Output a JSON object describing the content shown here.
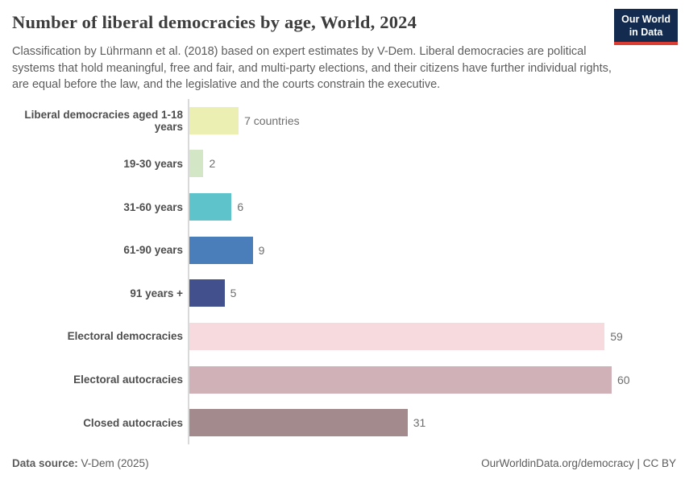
{
  "header": {
    "title": "Number of liberal democracies by age, World, 2024",
    "subtitle": "Classification by Lührmann et al. (2018) based on expert estimates by V-Dem. Liberal democracies are political systems that hold meaningful, free and fair, and multi-party elections, and their citizens have further individual rights, are equal before the law, and the legislative and the courts constrain the executive.",
    "logo": {
      "line1": "Our World",
      "line2": "in Data",
      "background_color": "#122b4e",
      "accent_color": "#dc3c32"
    }
  },
  "chart_data": {
    "type": "bar",
    "orientation": "horizontal",
    "title": "Number of liberal democracies by age, World, 2024",
    "categories": [
      "Liberal democracies aged 1-18 years",
      "19-30 years",
      "31-60 years",
      "61-90 years",
      "91 years +",
      "Electoral democracies",
      "Electoral autocracies",
      "Closed autocracies"
    ],
    "values": [
      7,
      2,
      6,
      9,
      5,
      59,
      60,
      31
    ],
    "value_labels": [
      "7 countries",
      "2",
      "6",
      "9",
      "5",
      "59",
      "60",
      "31"
    ],
    "bar_colors": [
      "#ebf0b2",
      "#d3e7c7",
      "#5ec3cb",
      "#4a7eba",
      "#42508e",
      "#f7dade",
      "#d1b1b8",
      "#a38a8d"
    ],
    "xlabel": "",
    "ylabel": "",
    "xlim": [
      0,
      60
    ],
    "grid": false,
    "legend": "none",
    "axis_color": "#d9d9d9"
  },
  "footer": {
    "source_label": "Data source:",
    "source_value": " V-Dem (2025)",
    "url": "OurWorldinData.org/democracy",
    "separator": " | ",
    "license": "CC BY"
  }
}
